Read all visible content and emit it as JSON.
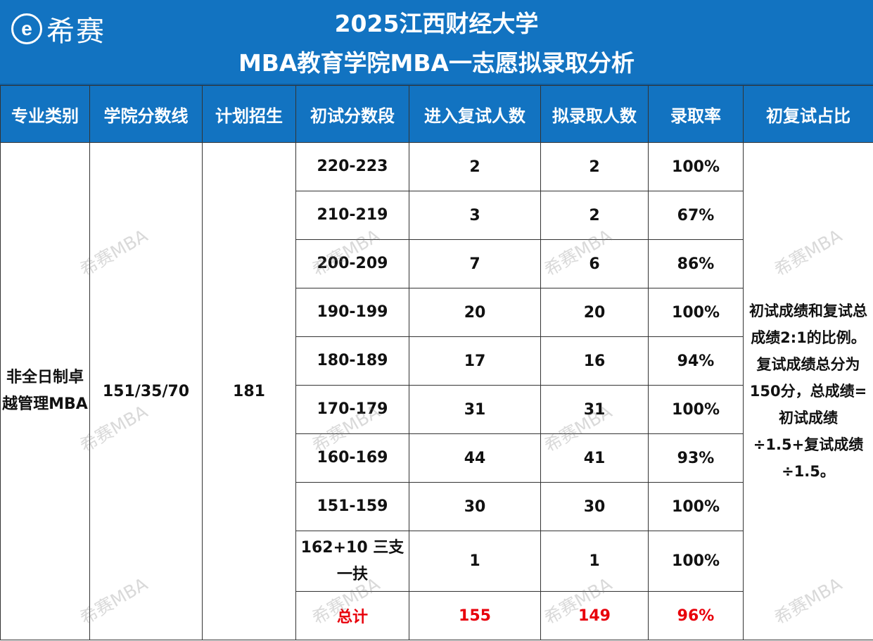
{
  "header": {
    "logo_mark": "e",
    "logo_text": "希赛",
    "title_line1": "2025江西财经大学",
    "title_line2": "MBA教育学院MBA一志愿拟录取分析"
  },
  "table": {
    "columns": [
      "专业类别",
      "学院分数线",
      "计划招生",
      "初试分数段",
      "进入复试人数",
      "拟录取人数",
      "录取率",
      "初复试占比"
    ],
    "major": "非全日制卓越管理MBA",
    "cutoff": "151/35/70",
    "plan": "181",
    "rows": [
      {
        "range": "220-223",
        "retest": "2",
        "admit": "2",
        "rate": "100%"
      },
      {
        "range": "210-219",
        "retest": "3",
        "admit": "2",
        "rate": "67%"
      },
      {
        "range": "200-209",
        "retest": "7",
        "admit": "6",
        "rate": "86%"
      },
      {
        "range": "190-199",
        "retest": "20",
        "admit": "20",
        "rate": "100%"
      },
      {
        "range": "180-189",
        "retest": "17",
        "admit": "16",
        "rate": "94%"
      },
      {
        "range": "170-179",
        "retest": "31",
        "admit": "31",
        "rate": "100%"
      },
      {
        "range": "160-169",
        "retest": "44",
        "admit": "41",
        "rate": "93%"
      },
      {
        "range": "151-159",
        "retest": "30",
        "admit": "30",
        "rate": "100%"
      },
      {
        "range": "162+10 三支一扶",
        "retest": "1",
        "admit": "1",
        "rate": "100%"
      }
    ],
    "total": {
      "label": "总计",
      "retest": "155",
      "admit": "149",
      "rate": "96%"
    },
    "ratio_note": "初试成绩和复试总成绩2:1的比例。复试成绩总分为150分，总成绩=初试成绩÷1.5+复试成绩÷1.5。"
  },
  "watermark": "希赛MBA",
  "colors": {
    "header_blue": "#1273C1",
    "total_red": "#e8000b"
  }
}
